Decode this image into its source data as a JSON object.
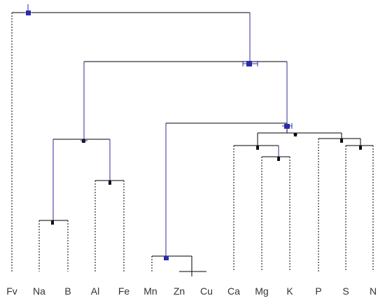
{
  "diagram": {
    "leaves": [
      "Fv",
      "Na",
      "B",
      "Al",
      "Fe",
      "Mn",
      "Zn",
      "Cu",
      "Ca",
      "Mg",
      "K",
      "P",
      "S",
      "N"
    ],
    "colors": {
      "line": "#000000",
      "highlight_branch": "#2b2b9a",
      "marker_dark": "#111111",
      "marker_blue": "#2b2bb0",
      "label": "#333333"
    }
  }
}
